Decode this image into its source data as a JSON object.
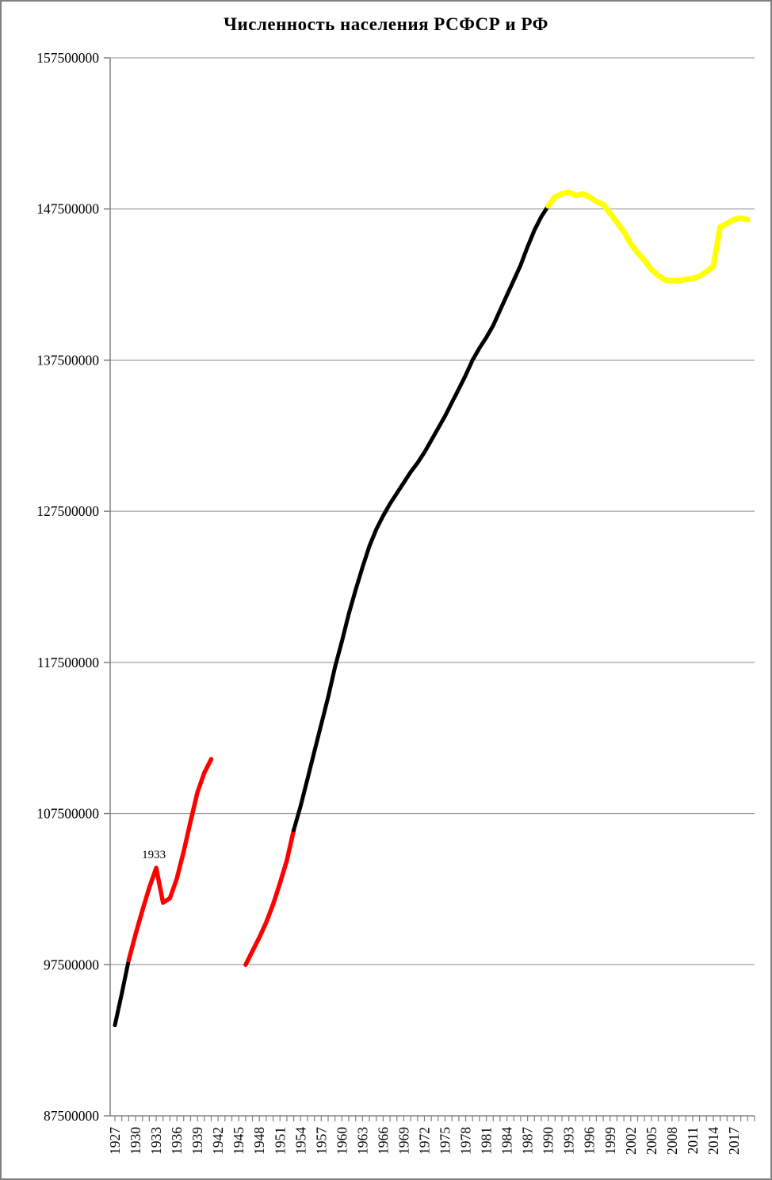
{
  "chart_data": {
    "type": "line",
    "title": "Численность населения РСФСР и РФ",
    "xlabel": "",
    "ylabel": "",
    "grid": true,
    "legend": "none",
    "x_axis": {
      "min": 1927,
      "max": 2020,
      "tick_interval": 1,
      "label_interval": 3,
      "tick_labels": [
        "1927",
        "1930",
        "1933",
        "1936",
        "1939",
        "1942",
        "1945",
        "1948",
        "1951",
        "1954",
        "1957",
        "1960",
        "1963",
        "1966",
        "1969",
        "1972",
        "1975",
        "1978",
        "1981",
        "1984",
        "1987",
        "1990",
        "1993",
        "1996",
        "1999",
        "2002",
        "2005",
        "2008",
        "2011",
        "2014",
        "2017"
      ]
    },
    "y_axis": {
      "min": 87500000,
      "max": 157500000,
      "tick_interval": 10000000,
      "tick_labels": [
        "157500000",
        "147500000",
        "137500000",
        "127500000",
        "117500000",
        "107500000",
        "97500000",
        "87500000"
      ]
    },
    "annotations": [
      {
        "text": "1933",
        "year": 1933,
        "value": 103900000
      }
    ],
    "series": [
      {
        "id": "segment-black-1927-1929",
        "color": "#000000",
        "stroke_width": 5,
        "points": [
          [
            1927,
            93500000
          ],
          [
            1928,
            95600000
          ],
          [
            1929,
            97800000
          ]
        ]
      },
      {
        "id": "segment-red-1929-1941",
        "color": "#ff0000",
        "stroke_width": 5.5,
        "points": [
          [
            1929,
            97800000
          ],
          [
            1930,
            99500000
          ],
          [
            1931,
            101100000
          ],
          [
            1932,
            102600000
          ],
          [
            1933,
            103900000
          ],
          [
            1934,
            101600000
          ],
          [
            1935,
            101900000
          ],
          [
            1936,
            103200000
          ],
          [
            1937,
            105000000
          ],
          [
            1938,
            107000000
          ],
          [
            1939,
            108900000
          ],
          [
            1940,
            110200000
          ],
          [
            1941,
            111100000
          ]
        ]
      },
      {
        "id": "segment-red-1946-1953",
        "color": "#ff0000",
        "stroke_width": 5.5,
        "points": [
          [
            1946,
            97500000
          ],
          [
            1947,
            98400000
          ],
          [
            1948,
            99300000
          ],
          [
            1949,
            100300000
          ],
          [
            1950,
            101500000
          ],
          [
            1951,
            102900000
          ],
          [
            1952,
            104400000
          ],
          [
            1953,
            106400000
          ]
        ]
      },
      {
        "id": "segment-black-1953-1990",
        "color": "#000000",
        "stroke_width": 5,
        "points": [
          [
            1953,
            106400000
          ],
          [
            1954,
            108000000
          ],
          [
            1955,
            109800000
          ],
          [
            1956,
            111600000
          ],
          [
            1957,
            113400000
          ],
          [
            1958,
            115200000
          ],
          [
            1959,
            117200000
          ],
          [
            1960,
            118900000
          ],
          [
            1961,
            120700000
          ],
          [
            1962,
            122300000
          ],
          [
            1963,
            123800000
          ],
          [
            1964,
            125200000
          ],
          [
            1965,
            126300000
          ],
          [
            1966,
            127200000
          ],
          [
            1967,
            128000000
          ],
          [
            1968,
            128700000
          ],
          [
            1969,
            129400000
          ],
          [
            1970,
            130100000
          ],
          [
            1971,
            130700000
          ],
          [
            1972,
            131400000
          ],
          [
            1973,
            132200000
          ],
          [
            1974,
            133000000
          ],
          [
            1975,
            133800000
          ],
          [
            1976,
            134700000
          ],
          [
            1977,
            135600000
          ],
          [
            1978,
            136500000
          ],
          [
            1979,
            137500000
          ],
          [
            1980,
            138300000
          ],
          [
            1981,
            139000000
          ],
          [
            1982,
            139800000
          ],
          [
            1983,
            140800000
          ],
          [
            1984,
            141800000
          ],
          [
            1985,
            142800000
          ],
          [
            1986,
            143800000
          ],
          [
            1987,
            145000000
          ],
          [
            1988,
            146100000
          ],
          [
            1989,
            147000000
          ],
          [
            1990,
            147700000
          ]
        ]
      },
      {
        "id": "segment-yellow-1990-2019",
        "color": "#ffff00",
        "stroke_width": 7,
        "points": [
          [
            1990,
            147700000
          ],
          [
            1991,
            148300000
          ],
          [
            1992,
            148500000
          ],
          [
            1993,
            148600000
          ],
          [
            1994,
            148400000
          ],
          [
            1995,
            148500000
          ],
          [
            1996,
            148300000
          ],
          [
            1997,
            148000000
          ],
          [
            1998,
            147800000
          ],
          [
            1999,
            147200000
          ],
          [
            2000,
            146600000
          ],
          [
            2001,
            146000000
          ],
          [
            2002,
            145200000
          ],
          [
            2003,
            144600000
          ],
          [
            2004,
            144100000
          ],
          [
            2005,
            143500000
          ],
          [
            2006,
            143100000
          ],
          [
            2007,
            142800000
          ],
          [
            2008,
            142750000
          ],
          [
            2009,
            142750000
          ],
          [
            2010,
            142850000
          ],
          [
            2011,
            142900000
          ],
          [
            2012,
            143050000
          ],
          [
            2013,
            143350000
          ],
          [
            2014,
            143700000
          ],
          [
            2015,
            146300000
          ],
          [
            2016,
            146550000
          ],
          [
            2017,
            146800000
          ],
          [
            2018,
            146900000
          ],
          [
            2019,
            146800000
          ]
        ]
      }
    ],
    "colors": {
      "gridline": "#8c8c8c",
      "axis": "#808080",
      "text": "#000000",
      "background": "#ffffff",
      "border": "#808080"
    }
  }
}
